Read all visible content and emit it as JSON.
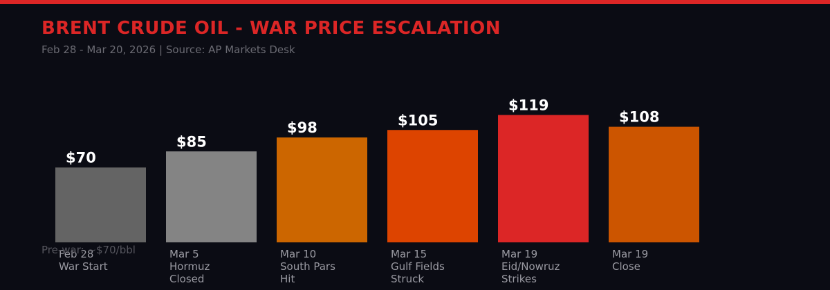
{
  "title": "BRENT CRUDE OIL - WAR PRICE ESCALATION",
  "subtitle": "Feb 28 - Mar 20, 2026  |  Source: AP Markets Desk",
  "footnote": "Pre-war: ~$70/bbl",
  "colors": {
    "accent": "#dc2626",
    "background": "#0b0c14"
  },
  "chart_data": {
    "type": "bar",
    "title": "BRENT CRUDE OIL - WAR PRICE ESCALATION",
    "xlabel": "",
    "ylabel": "",
    "ylim": [
      0,
      140
    ],
    "grid": false,
    "legend": "none",
    "categories": [
      [
        "Feb 28",
        "War Start"
      ],
      [
        "Mar 5",
        "Hormuz",
        "Closed"
      ],
      [
        "Mar 10",
        "South Pars",
        "Hit"
      ],
      [
        "Mar 15",
        "Gulf Fields",
        "Struck"
      ],
      [
        "Mar 19",
        "Eid/Nowruz",
        "Strikes"
      ],
      [
        "Mar 19",
        "Close"
      ]
    ],
    "values": [
      70,
      85,
      98,
      105,
      119,
      108
    ],
    "value_labels": [
      "$70",
      "$85",
      "$98",
      "$105",
      "$119",
      "$108"
    ],
    "bar_colors": [
      "#646464",
      "#848484",
      "#cc6600",
      "#dd4400",
      "#dc2626",
      "#cc5500"
    ]
  }
}
